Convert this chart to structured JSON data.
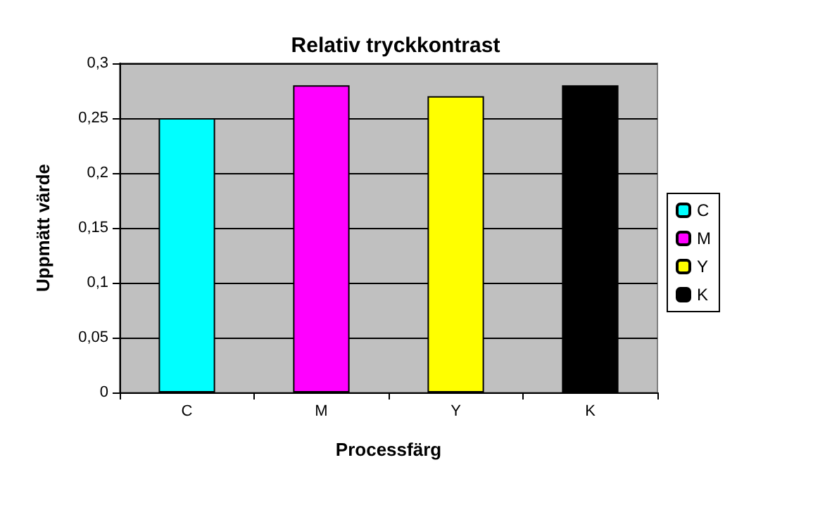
{
  "chart_data": {
    "type": "bar",
    "title": "Relativ tryckkontrast",
    "xlabel": "Processfärg",
    "ylabel": "Uppmätt värde",
    "categories": [
      "C",
      "M",
      "Y",
      "K"
    ],
    "series": [
      {
        "name": "C",
        "color": "#00ffff",
        "values": [
          0.25,
          null,
          null,
          null
        ]
      },
      {
        "name": "M",
        "color": "#ff00ff",
        "values": [
          null,
          0.28,
          null,
          null
        ]
      },
      {
        "name": "Y",
        "color": "#ffff00",
        "values": [
          null,
          null,
          0.27,
          null
        ]
      },
      {
        "name": "K",
        "color": "#000000",
        "values": [
          null,
          null,
          null,
          0.28
        ]
      }
    ],
    "stacked": true,
    "ylim": [
      0,
      0.3
    ],
    "yticks": [
      {
        "value": 0,
        "label": "0"
      },
      {
        "value": 0.05,
        "label": "0,05"
      },
      {
        "value": 0.1,
        "label": "0,1"
      },
      {
        "value": 0.15,
        "label": "0,15"
      },
      {
        "value": 0.2,
        "label": "0,2"
      },
      {
        "value": 0.25,
        "label": "0,25"
      },
      {
        "value": 0.3,
        "label": "0,3"
      }
    ],
    "grid": "y",
    "legend": "right"
  }
}
